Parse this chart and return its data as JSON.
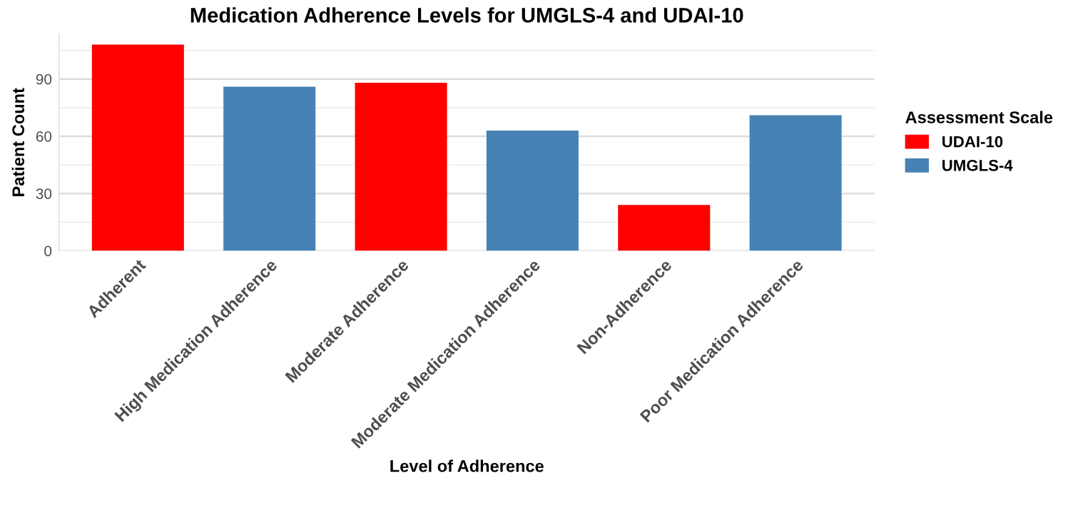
{
  "chart_data": {
    "type": "bar",
    "title": "Medication Adherence Levels for UMGLS-4 and UDAI-10",
    "xlabel": "Level of Adherence",
    "ylabel": "Patient Count",
    "legend_title": "Assessment Scale",
    "categories": [
      "Adherent",
      "High Medication Adherence",
      "Moderate Adherence",
      "Moderate Medication Adherence",
      "Non-Adherence",
      "Poor Medication Adherence"
    ],
    "series": [
      {
        "name": "UDAI-10",
        "color": "#ff0000",
        "values": [
          108,
          null,
          88,
          null,
          24,
          null
        ]
      },
      {
        "name": "UMGLS-4",
        "color": "#4682b4",
        "values": [
          null,
          86,
          null,
          63,
          null,
          71
        ]
      }
    ],
    "ylim": [
      0,
      113.4
    ],
    "yticks": [
      0,
      30,
      60,
      90
    ],
    "grid": "y",
    "legend": "right"
  }
}
